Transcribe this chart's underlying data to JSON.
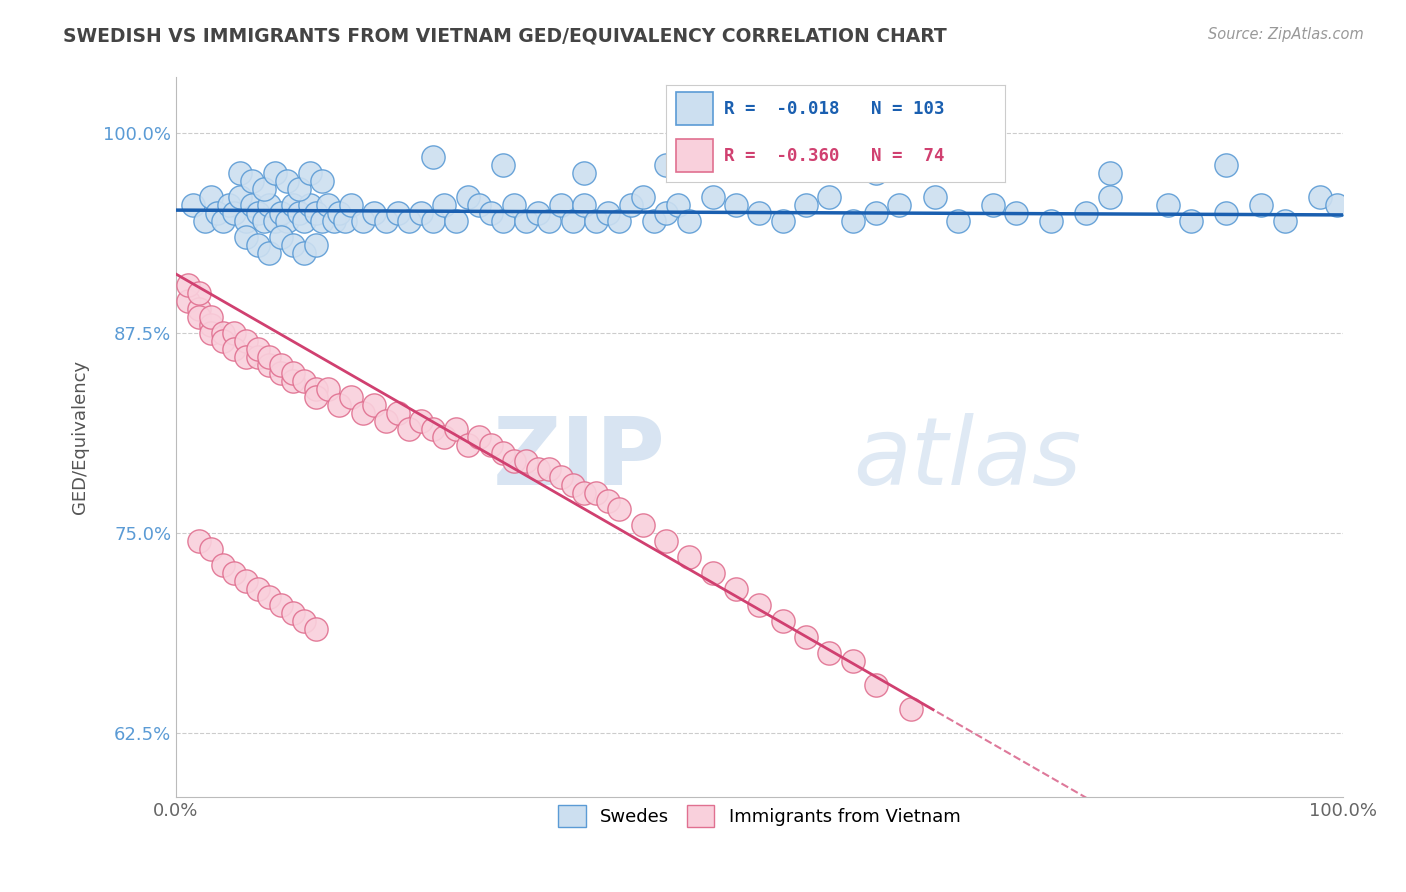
{
  "title": "SWEDISH VS IMMIGRANTS FROM VIETNAM GED/EQUIVALENCY CORRELATION CHART",
  "source_text": "Source: ZipAtlas.com",
  "ylabel": "GED/Equivalency",
  "xlim": [
    0.0,
    1.0
  ],
  "ylim": [
    0.585,
    1.035
  ],
  "yticks": [
    0.625,
    0.75,
    0.875,
    1.0
  ],
  "ytick_labels": [
    "62.5%",
    "75.0%",
    "87.5%",
    "100.0%"
  ],
  "xticks": [
    0.0,
    1.0
  ],
  "xtick_labels": [
    "0.0%",
    "100.0%"
  ],
  "blue_R": -0.018,
  "blue_N": 103,
  "pink_R": -0.36,
  "pink_N": 74,
  "blue_color": "#ccdff0",
  "blue_edge_color": "#5b9bd5",
  "pink_color": "#f9d0dc",
  "pink_edge_color": "#e07090",
  "blue_line_color": "#1a5fb0",
  "pink_line_color": "#d04070",
  "legend_label_blue": "Swedes",
  "legend_label_pink": "Immigrants from Vietnam",
  "watermark_zip": "ZIP",
  "watermark_atlas": "atlas",
  "background_color": "#ffffff",
  "grid_color": "#cccccc",
  "blue_scatter_x": [
    0.015,
    0.025,
    0.03,
    0.035,
    0.04,
    0.045,
    0.05,
    0.055,
    0.06,
    0.065,
    0.07,
    0.075,
    0.08,
    0.085,
    0.09,
    0.095,
    0.1,
    0.105,
    0.11,
    0.115,
    0.12,
    0.125,
    0.13,
    0.135,
    0.14,
    0.145,
    0.15,
    0.16,
    0.17,
    0.18,
    0.19,
    0.2,
    0.21,
    0.22,
    0.23,
    0.24,
    0.25,
    0.26,
    0.27,
    0.28,
    0.29,
    0.3,
    0.31,
    0.32,
    0.33,
    0.34,
    0.35,
    0.36,
    0.37,
    0.38,
    0.39,
    0.4,
    0.41,
    0.42,
    0.43,
    0.44,
    0.46,
    0.48,
    0.5,
    0.52,
    0.54,
    0.56,
    0.58,
    0.6,
    0.62,
    0.65,
    0.67,
    0.7,
    0.72,
    0.75,
    0.78,
    0.8,
    0.85,
    0.87,
    0.9,
    0.93,
    0.95,
    0.98,
    0.995,
    0.055,
    0.065,
    0.075,
    0.085,
    0.095,
    0.105,
    0.115,
    0.125,
    0.06,
    0.07,
    0.08,
    0.09,
    0.1,
    0.11,
    0.12,
    0.22,
    0.28,
    0.35,
    0.42,
    0.5,
    0.6,
    0.7,
    0.8,
    0.9
  ],
  "blue_scatter_y": [
    0.955,
    0.945,
    0.96,
    0.95,
    0.945,
    0.955,
    0.95,
    0.96,
    0.945,
    0.955,
    0.95,
    0.945,
    0.955,
    0.945,
    0.95,
    0.945,
    0.955,
    0.95,
    0.945,
    0.955,
    0.95,
    0.945,
    0.955,
    0.945,
    0.95,
    0.945,
    0.955,
    0.945,
    0.95,
    0.945,
    0.95,
    0.945,
    0.95,
    0.945,
    0.955,
    0.945,
    0.96,
    0.955,
    0.95,
    0.945,
    0.955,
    0.945,
    0.95,
    0.945,
    0.955,
    0.945,
    0.955,
    0.945,
    0.95,
    0.945,
    0.955,
    0.96,
    0.945,
    0.95,
    0.955,
    0.945,
    0.96,
    0.955,
    0.95,
    0.945,
    0.955,
    0.96,
    0.945,
    0.95,
    0.955,
    0.96,
    0.945,
    0.955,
    0.95,
    0.945,
    0.95,
    0.96,
    0.955,
    0.945,
    0.95,
    0.955,
    0.945,
    0.96,
    0.955,
    0.975,
    0.97,
    0.965,
    0.975,
    0.97,
    0.965,
    0.975,
    0.97,
    0.935,
    0.93,
    0.925,
    0.935,
    0.93,
    0.925,
    0.93,
    0.985,
    0.98,
    0.975,
    0.98,
    0.985,
    0.975,
    0.98,
    0.975,
    0.98
  ],
  "pink_scatter_x": [
    0.01,
    0.01,
    0.02,
    0.02,
    0.02,
    0.03,
    0.03,
    0.03,
    0.04,
    0.04,
    0.05,
    0.05,
    0.06,
    0.06,
    0.07,
    0.07,
    0.08,
    0.08,
    0.09,
    0.09,
    0.1,
    0.1,
    0.11,
    0.12,
    0.12,
    0.13,
    0.14,
    0.15,
    0.16,
    0.17,
    0.18,
    0.19,
    0.2,
    0.21,
    0.22,
    0.23,
    0.24,
    0.25,
    0.26,
    0.27,
    0.28,
    0.29,
    0.3,
    0.31,
    0.32,
    0.33,
    0.34,
    0.35,
    0.36,
    0.37,
    0.38,
    0.4,
    0.42,
    0.44,
    0.46,
    0.48,
    0.5,
    0.52,
    0.54,
    0.56,
    0.58,
    0.6,
    0.63,
    0.02,
    0.03,
    0.04,
    0.05,
    0.06,
    0.07,
    0.08,
    0.09,
    0.1,
    0.11,
    0.12
  ],
  "pink_scatter_y": [
    0.895,
    0.905,
    0.89,
    0.9,
    0.885,
    0.88,
    0.875,
    0.885,
    0.875,
    0.87,
    0.875,
    0.865,
    0.87,
    0.86,
    0.86,
    0.865,
    0.855,
    0.86,
    0.85,
    0.855,
    0.845,
    0.85,
    0.845,
    0.84,
    0.835,
    0.84,
    0.83,
    0.835,
    0.825,
    0.83,
    0.82,
    0.825,
    0.815,
    0.82,
    0.815,
    0.81,
    0.815,
    0.805,
    0.81,
    0.805,
    0.8,
    0.795,
    0.795,
    0.79,
    0.79,
    0.785,
    0.78,
    0.775,
    0.775,
    0.77,
    0.765,
    0.755,
    0.745,
    0.735,
    0.725,
    0.715,
    0.705,
    0.695,
    0.685,
    0.675,
    0.67,
    0.655,
    0.64,
    0.745,
    0.74,
    0.73,
    0.725,
    0.72,
    0.715,
    0.71,
    0.705,
    0.7,
    0.695,
    0.69
  ],
  "pink_trend_solid_end": 0.65,
  "blue_trend_intercept": 0.952,
  "blue_trend_slope": -0.003,
  "pink_trend_intercept": 0.912,
  "pink_trend_slope": -0.42
}
